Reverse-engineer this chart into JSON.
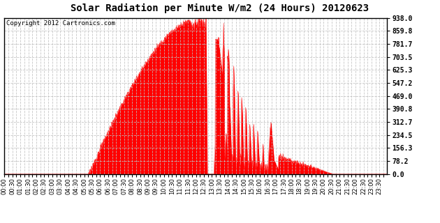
{
  "title": "Solar Radiation per Minute W/m2 (24 Hours) 20120623",
  "copyright_text": "Copyright 2012 Cartronics.com",
  "background_color": "#ffffff",
  "fill_color": "#ff0000",
  "line_color": "#ff0000",
  "dashed_line_color": "#ff0000",
  "grid_color": "#c0c0c0",
  "yticks": [
    0.0,
    78.2,
    156.3,
    234.5,
    312.7,
    390.8,
    469.0,
    547.2,
    625.3,
    703.5,
    781.7,
    859.8,
    938.0
  ],
  "ymin": 0.0,
  "ymax": 938.0,
  "total_minutes": 1440,
  "xtick_interval_minutes": 15,
  "xtick_label_interval": 2,
  "title_fontsize": 10,
  "copyright_fontsize": 6.5,
  "tick_fontsize": 6,
  "ytick_fontsize": 7
}
